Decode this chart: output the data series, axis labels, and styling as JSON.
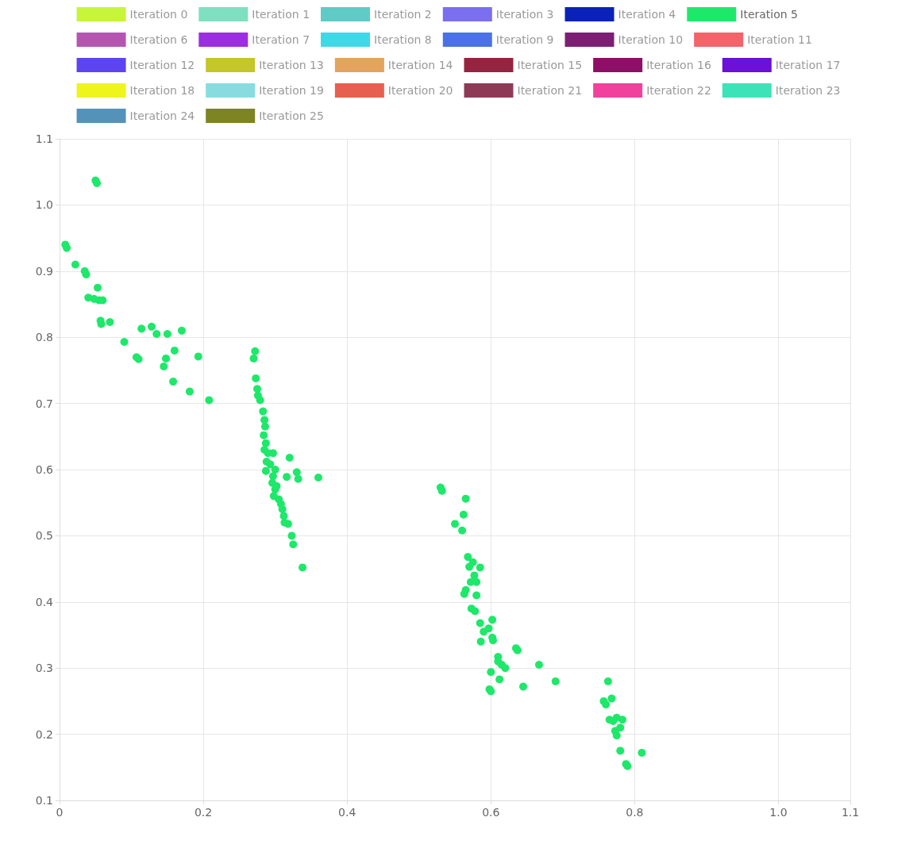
{
  "chart_data": {
    "type": "scatter",
    "xlim": [
      0,
      1.1
    ],
    "ylim": [
      0.1,
      1.1
    ],
    "xticks": [
      0,
      0.2,
      0.4,
      0.6,
      0.8,
      {
        "value": 1,
        "label": "1.0"
      },
      1.1
    ],
    "yticks": [
      0.1,
      0.2,
      0.3,
      0.4,
      0.5,
      0.6,
      0.7,
      0.8,
      0.9,
      {
        "value": 1,
        "label": "1.0"
      },
      1.1
    ],
    "grid": true,
    "legend": "top",
    "marker": "circle",
    "series": [
      {
        "name": "Iteration 0",
        "color": "#c6f53a"
      },
      {
        "name": "Iteration 1",
        "color": "#7ee0c0"
      },
      {
        "name": "Iteration 2",
        "color": "#5ecbc6"
      },
      {
        "name": "Iteration 3",
        "color": "#7b6ef0"
      },
      {
        "name": "Iteration 4",
        "color": "#0a22b8"
      },
      {
        "name": "Iteration 5",
        "color": "#1ee86a",
        "x": [
          0.05,
          0.052,
          0.008,
          0.01,
          0.022,
          0.035,
          0.037,
          0.053,
          0.04,
          0.048,
          0.055,
          0.06,
          0.057,
          0.058,
          0.07,
          0.09,
          0.107,
          0.11,
          0.114,
          0.128,
          0.135,
          0.15,
          0.17,
          0.16,
          0.148,
          0.145,
          0.158,
          0.193,
          0.181,
          0.208,
          0.272,
          0.27,
          0.273,
          0.275,
          0.276,
          0.279,
          0.283,
          0.285,
          0.286,
          0.284,
          0.287,
          0.285,
          0.29,
          0.297,
          0.288,
          0.293,
          0.287,
          0.297,
          0.3,
          0.296,
          0.3,
          0.302,
          0.298,
          0.305,
          0.308,
          0.31,
          0.312,
          0.313,
          0.318,
          0.323,
          0.325,
          0.338,
          0.32,
          0.316,
          0.33,
          0.332,
          0.36,
          0.53,
          0.532,
          0.565,
          0.55,
          0.562,
          0.56,
          0.568,
          0.575,
          0.57,
          0.585,
          0.577,
          0.572,
          0.58,
          0.565,
          0.563,
          0.58,
          0.573,
          0.578,
          0.585,
          0.602,
          0.59,
          0.597,
          0.586,
          0.602,
          0.603,
          0.61,
          0.61,
          0.615,
          0.62,
          0.635,
          0.637,
          0.6,
          0.612,
          0.598,
          0.6,
          0.645,
          0.667,
          0.69,
          0.763,
          0.757,
          0.76,
          0.768,
          0.765,
          0.77,
          0.775,
          0.783,
          0.773,
          0.775,
          0.78,
          0.78,
          0.788,
          0.79,
          0.81
        ],
        "values": [
          1.037,
          1.033,
          0.94,
          0.935,
          0.91,
          0.9,
          0.895,
          0.875,
          0.86,
          0.858,
          0.856,
          0.856,
          0.825,
          0.82,
          0.823,
          0.793,
          0.77,
          0.767,
          0.813,
          0.816,
          0.805,
          0.805,
          0.81,
          0.78,
          0.768,
          0.756,
          0.733,
          0.771,
          0.718,
          0.705,
          0.779,
          0.768,
          0.738,
          0.722,
          0.712,
          0.705,
          0.688,
          0.675,
          0.665,
          0.652,
          0.64,
          0.63,
          0.625,
          0.625,
          0.612,
          0.608,
          0.598,
          0.59,
          0.6,
          0.58,
          0.57,
          0.575,
          0.56,
          0.555,
          0.548,
          0.54,
          0.53,
          0.52,
          0.518,
          0.5,
          0.487,
          0.452,
          0.618,
          0.589,
          0.596,
          0.586,
          0.588,
          0.573,
          0.568,
          0.556,
          0.518,
          0.532,
          0.508,
          0.468,
          0.46,
          0.453,
          0.452,
          0.44,
          0.43,
          0.43,
          0.418,
          0.412,
          0.41,
          0.39,
          0.386,
          0.368,
          0.373,
          0.355,
          0.36,
          0.34,
          0.346,
          0.342,
          0.317,
          0.31,
          0.305,
          0.3,
          0.33,
          0.327,
          0.294,
          0.283,
          0.268,
          0.265,
          0.272,
          0.305,
          0.28,
          0.28,
          0.25,
          0.245,
          0.254,
          0.222,
          0.22,
          0.225,
          0.222,
          0.205,
          0.198,
          0.21,
          0.175,
          0.155,
          0.152,
          0.172
        ]
      },
      {
        "name": "Iteration 6",
        "color": "#b456b0"
      },
      {
        "name": "Iteration 7",
        "color": "#9b2ee0"
      },
      {
        "name": "Iteration 8",
        "color": "#3fd8e6"
      },
      {
        "name": "Iteration 9",
        "color": "#4a72e6"
      },
      {
        "name": "Iteration 10",
        "color": "#7c1f74"
      },
      {
        "name": "Iteration 11",
        "color": "#f2636a"
      },
      {
        "name": "Iteration 12",
        "color": "#5c44f0"
      },
      {
        "name": "Iteration 13",
        "color": "#c4c629"
      },
      {
        "name": "Iteration 14",
        "color": "#e4a35e"
      },
      {
        "name": "Iteration 15",
        "color": "#94243f"
      },
      {
        "name": "Iteration 16",
        "color": "#8e0f68"
      },
      {
        "name": "Iteration 17",
        "color": "#6d10d8"
      },
      {
        "name": "Iteration 18",
        "color": "#eef51a"
      },
      {
        "name": "Iteration 19",
        "color": "#88dce0"
      },
      {
        "name": "Iteration 20",
        "color": "#e6604f"
      },
      {
        "name": "Iteration 21",
        "color": "#8e3a56"
      },
      {
        "name": "Iteration 22",
        "color": "#f0429c"
      },
      {
        "name": "Iteration 23",
        "color": "#3de3b8"
      },
      {
        "name": "Iteration 24",
        "color": "#5592ba"
      },
      {
        "name": "Iteration 25",
        "color": "#7d8424"
      }
    ]
  }
}
